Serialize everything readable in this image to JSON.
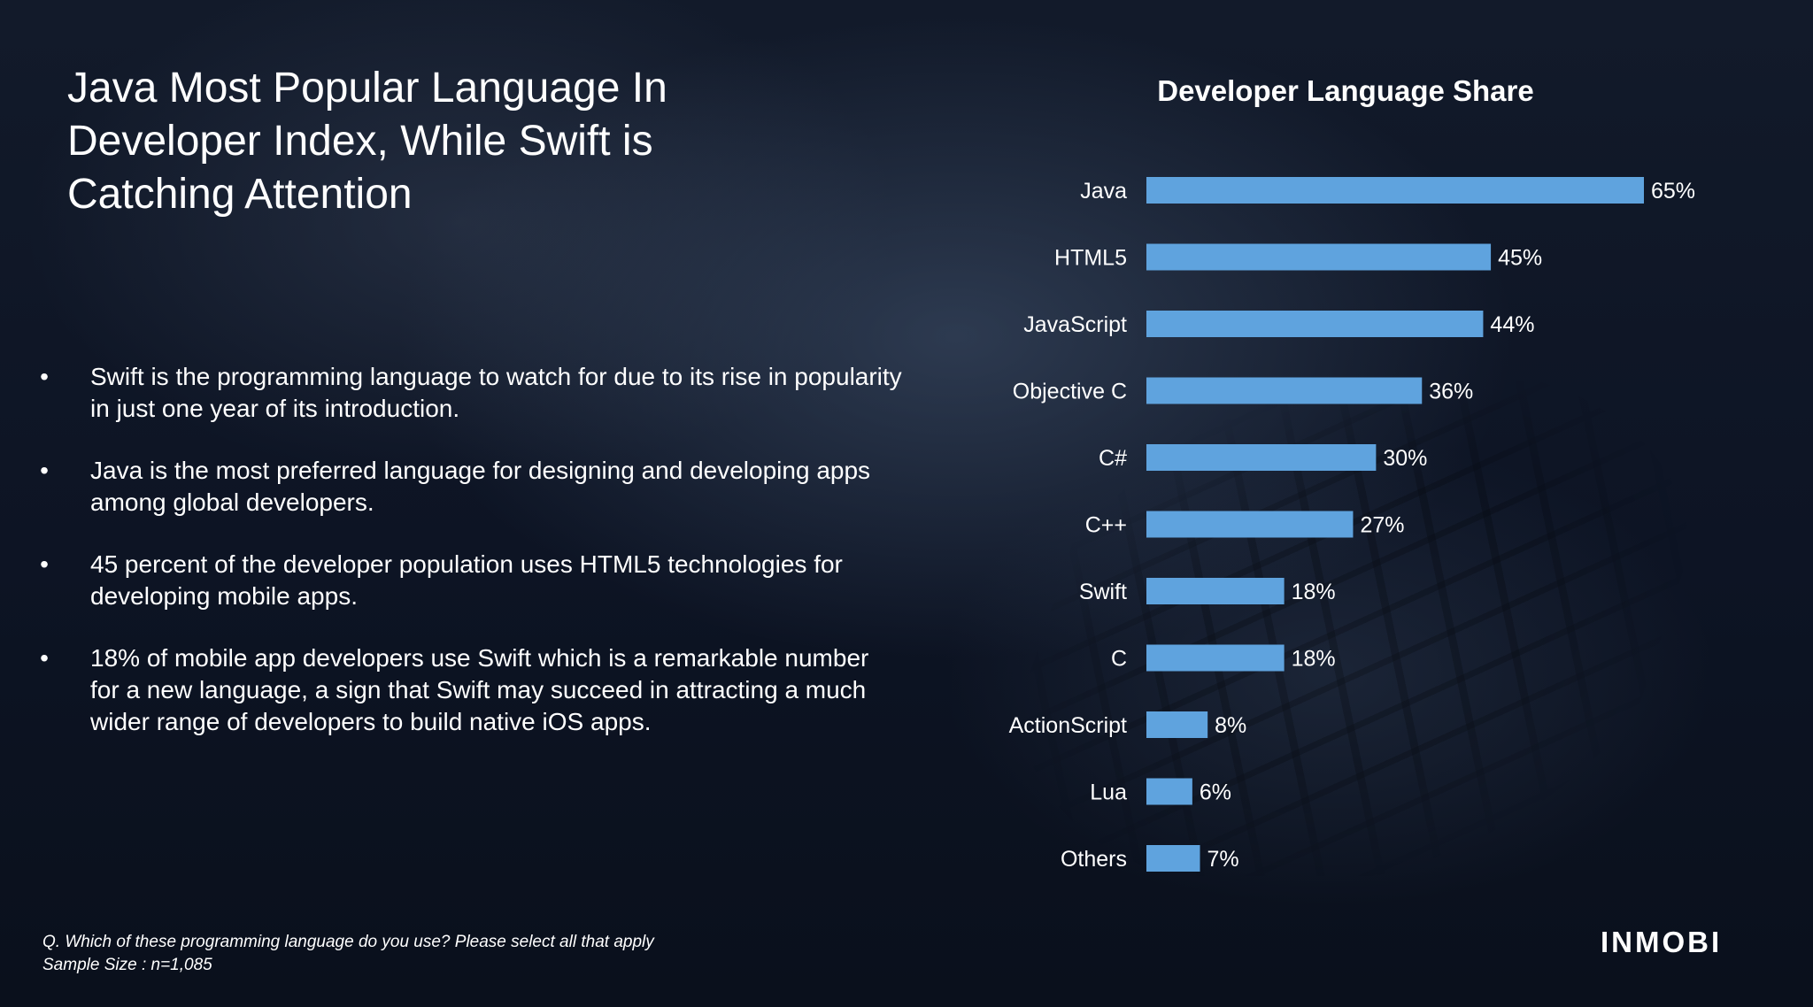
{
  "slide": {
    "title": "Java Most Popular Language In Developer Index, While Swift is Catching Attention",
    "bullets": [
      "Swift is the programming language to watch for due to its rise in popularity in just one year of its introduction.",
      "Java is the most preferred language for designing and developing apps among global developers.",
      "45 percent of the developer population uses HTML5 technologies for developing mobile apps.",
      "18% of mobile app developers use Swift which is a remarkable number for a new language, a sign that Swift may succeed in attracting a much wider range of developers to build native iOS apps."
    ],
    "bullet_glyph": "•",
    "footnote_question": "Q. Which of these programming language do you use? Please select all that apply",
    "footnote_sample": "Sample Size : n=1,085",
    "logo_text": "INMOBI"
  },
  "colors": {
    "bar": "#5fa3de",
    "text": "#ffffff"
  },
  "chart_data": {
    "type": "bar",
    "orientation": "horizontal",
    "title": "Developer Language Share",
    "categories": [
      "Java",
      "HTML5",
      "JavaScript",
      "Objective C",
      "C#",
      "C++",
      "Swift",
      "C",
      "ActionScript",
      "Lua",
      "Others"
    ],
    "values": [
      65,
      45,
      44,
      36,
      30,
      27,
      18,
      18,
      8,
      6,
      7
    ],
    "value_labels": [
      "65%",
      "45%",
      "44%",
      "36%",
      "30%",
      "27%",
      "18%",
      "18%",
      "8%",
      "6%",
      "7%"
    ],
    "xlim": [
      0,
      65
    ],
    "grid": false,
    "legend": "none"
  }
}
